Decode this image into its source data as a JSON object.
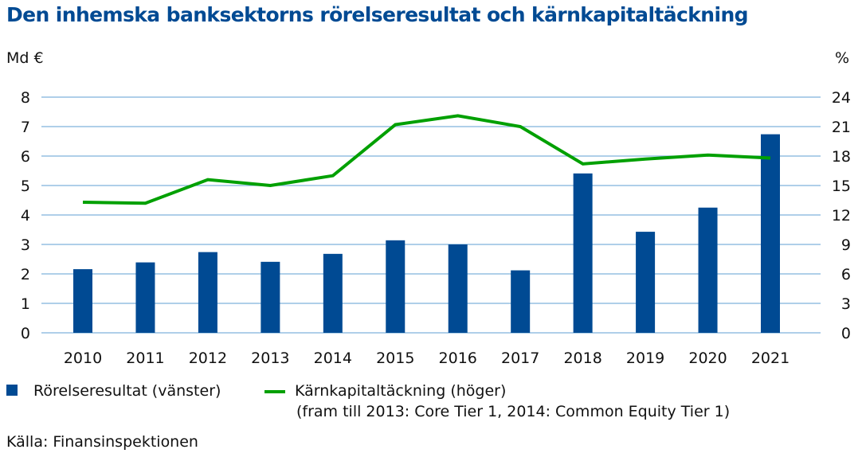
{
  "chart_data": {
    "type": "bar+line",
    "title": "Den inhemska banksektorns rörelseresultat och kärnkapitaltäckning",
    "ylabel_left": "Md €",
    "ylabel_right": "%",
    "ylim_left": [
      0,
      8
    ],
    "ylim_right": [
      0,
      24
    ],
    "yticks_left": [
      "0",
      "1",
      "2",
      "3",
      "4",
      "5",
      "6",
      "7",
      "8"
    ],
    "yticks_right": [
      "0",
      "3",
      "6",
      "9",
      "12",
      "15",
      "18",
      "21",
      "24"
    ],
    "grid": true,
    "categories": [
      "2010",
      "2011",
      "2012",
      "2013",
      "2014",
      "2015",
      "2016",
      "2017",
      "2018",
      "2019",
      "2020",
      "2021"
    ],
    "series": [
      {
        "name": "Rörelseresultat (vänster)",
        "type": "bar",
        "axis": "left",
        "color": "#004a93",
        "values": [
          2.16,
          2.39,
          2.74,
          2.41,
          2.68,
          3.14,
          3.0,
          2.12,
          5.41,
          3.43,
          4.25,
          6.74
        ]
      },
      {
        "name": "Kärnkapitaltäckning (höger)",
        "type": "line",
        "axis": "right",
        "color": "#00a000",
        "values": [
          13.3,
          13.2,
          15.6,
          15.0,
          16.0,
          21.2,
          22.1,
          21.0,
          17.2,
          17.7,
          18.1,
          17.8
        ]
      }
    ],
    "legend_note": "(fram till 2013: Core Tier 1, 2014: Common Equity Tier 1)",
    "legend_position": "bottom",
    "source": "Källa: Finansinspektionen"
  }
}
